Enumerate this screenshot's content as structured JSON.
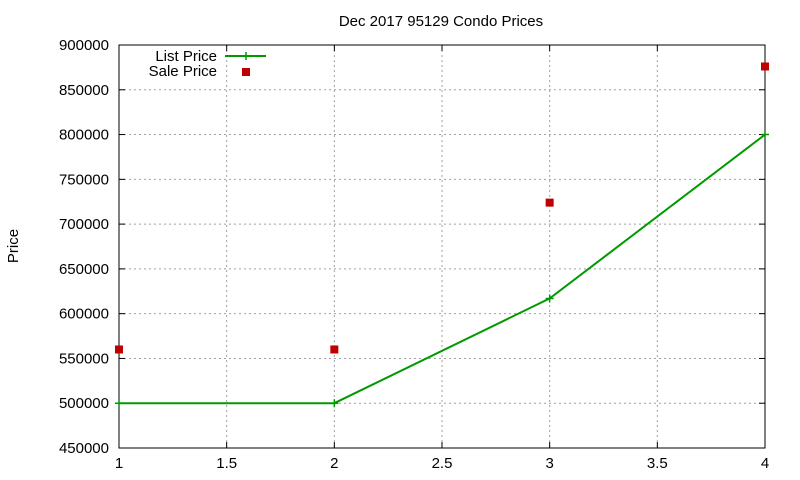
{
  "chart_data": {
    "type": "line",
    "title": "Dec 2017 95129 Condo Prices",
    "xlabel": "",
    "ylabel": "Price",
    "xlim": [
      1,
      4
    ],
    "ylim": [
      450000,
      900000
    ],
    "x_ticks": [
      "1",
      "1.5",
      "2",
      "2.5",
      "3",
      "3.5",
      "4"
    ],
    "y_ticks": [
      "450000",
      "500000",
      "550000",
      "600000",
      "650000",
      "700000",
      "750000",
      "800000",
      "850000",
      "900000"
    ],
    "grid": true,
    "legend_position": "top-left",
    "series": [
      {
        "name": "List Price",
        "style": "linespoints",
        "color": "#009900",
        "x": [
          1,
          2,
          3,
          4
        ],
        "y": [
          500000,
          500000,
          617000,
          800000
        ]
      },
      {
        "name": "Sale Price",
        "style": "points",
        "color": "#c00000",
        "x": [
          1,
          2,
          3,
          4
        ],
        "y": [
          560000,
          560000,
          724000,
          876000
        ]
      }
    ]
  }
}
